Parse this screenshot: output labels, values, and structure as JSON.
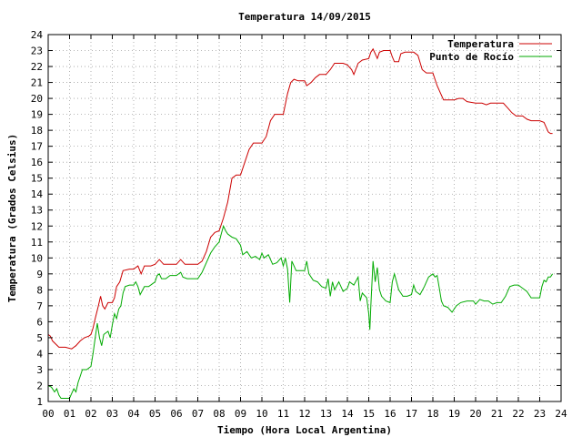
{
  "chart_data": {
    "type": "line",
    "title": "Temperatura 14/09/2015",
    "xlabel": "Tiempo (Hora Local Argentina)",
    "ylabel": "Temperatura (Grados Celsius)",
    "xlim": [
      0,
      24
    ],
    "ylim": [
      1,
      24
    ],
    "x_ticks": [
      "00",
      "01",
      "02",
      "03",
      "04",
      "05",
      "06",
      "07",
      "08",
      "09",
      "10",
      "11",
      "12",
      "13",
      "14",
      "15",
      "16",
      "17",
      "18",
      "19",
      "20",
      "21",
      "22",
      "23",
      "24"
    ],
    "y_ticks": [
      1,
      2,
      3,
      4,
      5,
      6,
      7,
      8,
      9,
      10,
      11,
      12,
      13,
      14,
      15,
      16,
      17,
      18,
      19,
      20,
      21,
      22,
      23,
      24
    ],
    "grid": true,
    "legend_position": "top-right",
    "series": [
      {
        "name": "Temperatura",
        "color": "#cc0000",
        "points": [
          [
            0.0,
            5.2
          ],
          [
            0.1,
            5.1
          ],
          [
            0.2,
            4.8
          ],
          [
            0.35,
            4.6
          ],
          [
            0.5,
            4.4
          ],
          [
            0.8,
            4.4
          ],
          [
            1.1,
            4.3
          ],
          [
            1.3,
            4.5
          ],
          [
            1.5,
            4.8
          ],
          [
            1.7,
            5.0
          ],
          [
            1.9,
            5.1
          ],
          [
            2.0,
            5.2
          ],
          [
            2.1,
            5.6
          ],
          [
            2.2,
            6.2
          ],
          [
            2.35,
            7.0
          ],
          [
            2.45,
            7.6
          ],
          [
            2.55,
            7.0
          ],
          [
            2.65,
            6.8
          ],
          [
            2.8,
            7.2
          ],
          [
            3.0,
            7.2
          ],
          [
            3.1,
            7.5
          ],
          [
            3.2,
            8.2
          ],
          [
            3.35,
            8.5
          ],
          [
            3.5,
            9.2
          ],
          [
            3.8,
            9.3
          ],
          [
            4.0,
            9.3
          ],
          [
            4.2,
            9.5
          ],
          [
            4.35,
            9.0
          ],
          [
            4.5,
            9.5
          ],
          [
            4.8,
            9.5
          ],
          [
            5.0,
            9.6
          ],
          [
            5.2,
            9.9
          ],
          [
            5.4,
            9.6
          ],
          [
            5.7,
            9.6
          ],
          [
            6.0,
            9.6
          ],
          [
            6.2,
            9.9
          ],
          [
            6.4,
            9.6
          ],
          [
            6.7,
            9.6
          ],
          [
            7.0,
            9.6
          ],
          [
            7.2,
            9.8
          ],
          [
            7.4,
            10.4
          ],
          [
            7.6,
            11.3
          ],
          [
            7.8,
            11.6
          ],
          [
            8.0,
            11.7
          ],
          [
            8.2,
            12.5
          ],
          [
            8.4,
            13.5
          ],
          [
            8.6,
            15.0
          ],
          [
            8.8,
            15.2
          ],
          [
            9.0,
            15.2
          ],
          [
            9.2,
            16.0
          ],
          [
            9.4,
            16.8
          ],
          [
            9.6,
            17.2
          ],
          [
            9.8,
            17.2
          ],
          [
            10.0,
            17.2
          ],
          [
            10.2,
            17.6
          ],
          [
            10.4,
            18.6
          ],
          [
            10.6,
            19.0
          ],
          [
            10.8,
            19.0
          ],
          [
            11.0,
            19.0
          ],
          [
            11.2,
            20.3
          ],
          [
            11.35,
            21.0
          ],
          [
            11.5,
            21.2
          ],
          [
            11.7,
            21.1
          ],
          [
            12.0,
            21.1
          ],
          [
            12.1,
            20.8
          ],
          [
            12.3,
            21.0
          ],
          [
            12.5,
            21.3
          ],
          [
            12.7,
            21.5
          ],
          [
            13.0,
            21.5
          ],
          [
            13.2,
            21.8
          ],
          [
            13.4,
            22.2
          ],
          [
            13.6,
            22.2
          ],
          [
            13.8,
            22.2
          ],
          [
            14.0,
            22.1
          ],
          [
            14.2,
            21.8
          ],
          [
            14.3,
            21.5
          ],
          [
            14.5,
            22.2
          ],
          [
            14.7,
            22.4
          ],
          [
            15.0,
            22.5
          ],
          [
            15.1,
            22.9
          ],
          [
            15.2,
            23.1
          ],
          [
            15.3,
            22.8
          ],
          [
            15.4,
            22.5
          ],
          [
            15.5,
            22.9
          ],
          [
            15.7,
            23.0
          ],
          [
            15.9,
            23.0
          ],
          [
            16.0,
            23.0
          ],
          [
            16.1,
            22.6
          ],
          [
            16.2,
            22.3
          ],
          [
            16.4,
            22.3
          ],
          [
            16.5,
            22.8
          ],
          [
            16.7,
            22.9
          ],
          [
            17.0,
            22.9
          ],
          [
            17.1,
            22.9
          ],
          [
            17.3,
            22.7
          ],
          [
            17.5,
            21.8
          ],
          [
            17.7,
            21.6
          ],
          [
            18.0,
            21.6
          ],
          [
            18.2,
            20.8
          ],
          [
            18.4,
            20.2
          ],
          [
            18.5,
            19.9
          ],
          [
            18.8,
            19.9
          ],
          [
            19.0,
            19.9
          ],
          [
            19.2,
            20.0
          ],
          [
            19.4,
            20.0
          ],
          [
            19.6,
            19.8
          ],
          [
            20.0,
            19.7
          ],
          [
            20.3,
            19.7
          ],
          [
            20.5,
            19.6
          ],
          [
            20.7,
            19.7
          ],
          [
            21.0,
            19.7
          ],
          [
            21.3,
            19.7
          ],
          [
            21.5,
            19.4
          ],
          [
            21.7,
            19.1
          ],
          [
            21.9,
            18.9
          ],
          [
            22.2,
            18.9
          ],
          [
            22.4,
            18.7
          ],
          [
            22.6,
            18.6
          ],
          [
            23.0,
            18.6
          ],
          [
            23.2,
            18.5
          ],
          [
            23.3,
            18.2
          ],
          [
            23.4,
            17.9
          ],
          [
            23.5,
            17.8
          ],
          [
            23.6,
            17.8
          ]
        ]
      },
      {
        "name": "Punto de Rocío",
        "color": "#00aa00",
        "points": [
          [
            0.0,
            2.0
          ],
          [
            0.15,
            1.9
          ],
          [
            0.3,
            1.6
          ],
          [
            0.4,
            1.8
          ],
          [
            0.5,
            1.4
          ],
          [
            0.6,
            1.2
          ],
          [
            0.8,
            1.2
          ],
          [
            1.0,
            1.2
          ],
          [
            1.1,
            1.5
          ],
          [
            1.2,
            1.8
          ],
          [
            1.3,
            1.6
          ],
          [
            1.4,
            2.2
          ],
          [
            1.5,
            2.6
          ],
          [
            1.6,
            3.0
          ],
          [
            1.8,
            3.0
          ],
          [
            2.0,
            3.2
          ],
          [
            2.1,
            4.0
          ],
          [
            2.2,
            5.0
          ],
          [
            2.3,
            5.9
          ],
          [
            2.4,
            5.0
          ],
          [
            2.5,
            4.5
          ],
          [
            2.6,
            5.2
          ],
          [
            2.8,
            5.4
          ],
          [
            2.9,
            5.0
          ],
          [
            3.0,
            5.8
          ],
          [
            3.1,
            6.5
          ],
          [
            3.2,
            6.2
          ],
          [
            3.3,
            6.8
          ],
          [
            3.4,
            7.0
          ],
          [
            3.5,
            7.8
          ],
          [
            3.6,
            8.2
          ],
          [
            3.8,
            8.3
          ],
          [
            4.0,
            8.3
          ],
          [
            4.1,
            8.5
          ],
          [
            4.2,
            8.2
          ],
          [
            4.3,
            7.7
          ],
          [
            4.5,
            8.2
          ],
          [
            4.7,
            8.2
          ],
          [
            4.9,
            8.4
          ],
          [
            5.0,
            8.5
          ],
          [
            5.1,
            8.9
          ],
          [
            5.2,
            9.0
          ],
          [
            5.3,
            8.7
          ],
          [
            5.5,
            8.7
          ],
          [
            5.7,
            8.9
          ],
          [
            6.0,
            8.9
          ],
          [
            6.2,
            9.1
          ],
          [
            6.3,
            8.8
          ],
          [
            6.5,
            8.7
          ],
          [
            7.0,
            8.7
          ],
          [
            7.2,
            9.1
          ],
          [
            7.4,
            9.7
          ],
          [
            7.6,
            10.3
          ],
          [
            7.8,
            10.7
          ],
          [
            8.0,
            11.0
          ],
          [
            8.1,
            11.5
          ],
          [
            8.2,
            12.0
          ],
          [
            8.3,
            11.7
          ],
          [
            8.4,
            11.5
          ],
          [
            8.6,
            11.3
          ],
          [
            8.8,
            11.2
          ],
          [
            9.0,
            10.8
          ],
          [
            9.1,
            10.2
          ],
          [
            9.3,
            10.4
          ],
          [
            9.5,
            10.0
          ],
          [
            9.7,
            10.1
          ],
          [
            9.9,
            9.9
          ],
          [
            10.0,
            10.3
          ],
          [
            10.1,
            10.0
          ],
          [
            10.3,
            10.2
          ],
          [
            10.5,
            9.6
          ],
          [
            10.7,
            9.7
          ],
          [
            10.9,
            10.0
          ],
          [
            11.0,
            9.5
          ],
          [
            11.1,
            10.0
          ],
          [
            11.2,
            9.3
          ],
          [
            11.3,
            7.2
          ],
          [
            11.4,
            9.8
          ],
          [
            11.5,
            9.5
          ],
          [
            11.6,
            9.2
          ],
          [
            11.8,
            9.2
          ],
          [
            12.0,
            9.2
          ],
          [
            12.1,
            9.8
          ],
          [
            12.2,
            9.0
          ],
          [
            12.4,
            8.6
          ],
          [
            12.6,
            8.5
          ],
          [
            12.8,
            8.2
          ],
          [
            13.0,
            8.1
          ],
          [
            13.1,
            8.7
          ],
          [
            13.2,
            7.6
          ],
          [
            13.3,
            8.5
          ],
          [
            13.4,
            8.0
          ],
          [
            13.6,
            8.5
          ],
          [
            13.8,
            7.9
          ],
          [
            14.0,
            8.1
          ],
          [
            14.1,
            8.5
          ],
          [
            14.3,
            8.3
          ],
          [
            14.5,
            8.8
          ],
          [
            14.6,
            7.3
          ],
          [
            14.7,
            7.8
          ],
          [
            14.9,
            7.5
          ],
          [
            15.0,
            6.5
          ],
          [
            15.05,
            5.5
          ],
          [
            15.1,
            7.0
          ],
          [
            15.2,
            9.8
          ],
          [
            15.3,
            8.5
          ],
          [
            15.4,
            9.4
          ],
          [
            15.5,
            8.0
          ],
          [
            15.6,
            7.6
          ],
          [
            15.8,
            7.3
          ],
          [
            16.0,
            7.2
          ],
          [
            16.1,
            8.5
          ],
          [
            16.2,
            9.0
          ],
          [
            16.3,
            8.5
          ],
          [
            16.4,
            8.0
          ],
          [
            16.6,
            7.6
          ],
          [
            16.8,
            7.6
          ],
          [
            17.0,
            7.7
          ],
          [
            17.1,
            8.3
          ],
          [
            17.2,
            7.9
          ],
          [
            17.4,
            7.7
          ],
          [
            17.6,
            8.2
          ],
          [
            17.8,
            8.8
          ],
          [
            18.0,
            9.0
          ],
          [
            18.1,
            8.8
          ],
          [
            18.2,
            8.9
          ],
          [
            18.3,
            8.1
          ],
          [
            18.4,
            7.3
          ],
          [
            18.5,
            7.0
          ],
          [
            18.7,
            6.9
          ],
          [
            18.9,
            6.6
          ],
          [
            19.0,
            6.8
          ],
          [
            19.1,
            7.0
          ],
          [
            19.3,
            7.2
          ],
          [
            19.6,
            7.3
          ],
          [
            19.9,
            7.3
          ],
          [
            20.0,
            7.1
          ],
          [
            20.2,
            7.4
          ],
          [
            20.4,
            7.3
          ],
          [
            20.6,
            7.3
          ],
          [
            20.8,
            7.1
          ],
          [
            21.0,
            7.2
          ],
          [
            21.2,
            7.2
          ],
          [
            21.4,
            7.6
          ],
          [
            21.6,
            8.2
          ],
          [
            21.8,
            8.3
          ],
          [
            22.0,
            8.3
          ],
          [
            22.2,
            8.1
          ],
          [
            22.4,
            7.9
          ],
          [
            22.6,
            7.5
          ],
          [
            22.8,
            7.5
          ],
          [
            23.0,
            7.5
          ],
          [
            23.1,
            8.2
          ],
          [
            23.2,
            8.6
          ],
          [
            23.3,
            8.5
          ],
          [
            23.4,
            8.8
          ],
          [
            23.5,
            8.8
          ],
          [
            23.6,
            9.0
          ]
        ]
      }
    ]
  }
}
